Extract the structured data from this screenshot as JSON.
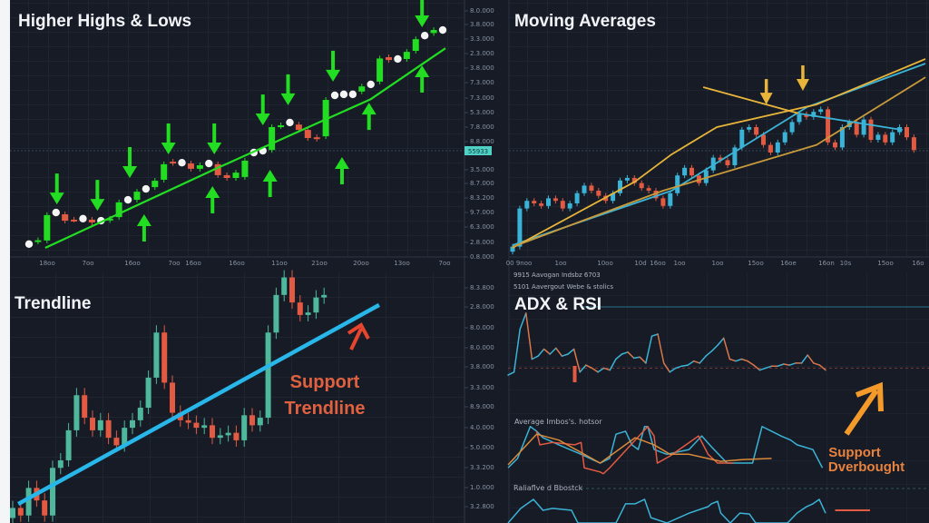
{
  "colors": {
    "background": "#161b26",
    "grid": "#262d3b",
    "hh_green": "#22dd22",
    "red": "#e35a42",
    "cyan": "#3bb3d6",
    "teal": "#4fb79c",
    "trendline": "#29b6e8",
    "gold": "#e8b53a",
    "dark_gold": "#c99a3a",
    "orange": "#f39a2b",
    "annotation_red": "#e0613f",
    "purple": "#7b4fd0"
  },
  "axes": {
    "top_y_labels": [
      "8.0.000",
      "3.8.000",
      "3.3.000",
      "2.3.000",
      "3.8.000",
      "7.3.000",
      "7.3.000",
      "5.3.000",
      "7.8.000",
      "8.8.000",
      "3.5.000",
      "8.7.000",
      "8.3.200",
      "9.7.000",
      "6.3.000",
      "2.8.000",
      "0.8.000"
    ],
    "top_price_badge": "55933",
    "bottom_y_labels": [
      "8.3.800",
      "2.8.000",
      "8.0.000",
      "8.0.000",
      "3.8.000",
      "3.3.000",
      "8.9.000",
      "4.0.000",
      "5.0.000",
      "3.3.200",
      "1.0.000",
      "3.2.800"
    ],
    "top_left_x_labels": [
      "18oo",
      "7oo",
      "16oo",
      "7oo",
      "16oo",
      "16oo",
      "11oo",
      "21oo",
      "20oo",
      "13oo",
      "7oo"
    ],
    "top_right_x_labels": [
      "00 9noo",
      "1oo",
      "10oo",
      "10d",
      "16oo",
      "1oo",
      "1oo",
      "15oo",
      "16oe",
      "16on",
      "10s",
      "15oo",
      "16o"
    ]
  },
  "chart_data": [
    {
      "type": "candlestick",
      "title": "Higher Highs & Lows",
      "ylim": [
        0,
        100
      ],
      "candles": [
        [
          4,
          4,
          "dot"
        ],
        [
          5,
          5.5,
          "g"
        ],
        [
          5.4,
          15.4,
          "g"
        ],
        [
          16.4,
          16.4,
          "dot"
        ],
        [
          15.7,
          13.2,
          "r"
        ],
        [
          13.6,
          13.6,
          "r"
        ],
        [
          14,
          14,
          "dot"
        ],
        [
          13.6,
          12.5,
          "r"
        ],
        [
          13.2,
          13.2,
          "dot"
        ],
        [
          13.4,
          14,
          "g"
        ],
        [
          14.6,
          20.4,
          "g"
        ],
        [
          21.4,
          21.4,
          "dot"
        ],
        [
          21.4,
          24.6,
          "g"
        ],
        [
          25.7,
          25.7,
          "dot"
        ],
        [
          26.4,
          28.9,
          "g"
        ],
        [
          29.3,
          35.4,
          "g"
        ],
        [
          36.4,
          35.9,
          "r"
        ],
        [
          36,
          36,
          "dot"
        ],
        [
          35.7,
          33.6,
          "r"
        ],
        [
          33.6,
          35,
          "g"
        ],
        [
          35.7,
          35.7,
          "dot"
        ],
        [
          35.4,
          31.1,
          "r"
        ],
        [
          31.1,
          30,
          "r"
        ],
        [
          30,
          32.1,
          "g"
        ],
        [
          30.4,
          36.8,
          "g"
        ],
        [
          40,
          40,
          "dot"
        ],
        [
          40.7,
          40.7,
          "dot"
        ],
        [
          41,
          50,
          "g"
        ],
        [
          50.4,
          50.7,
          "g"
        ],
        [
          51.8,
          51.8,
          "dot"
        ],
        [
          51,
          48.9,
          "r"
        ],
        [
          48.9,
          45.7,
          "r"
        ],
        [
          46,
          45.4,
          "r"
        ],
        [
          46.4,
          60.7,
          "g"
        ],
        [
          62.5,
          62.5,
          "dot"
        ],
        [
          62.9,
          62.9,
          "dot"
        ],
        [
          62.9,
          62.9,
          "dot"
        ],
        [
          64,
          66,
          "g"
        ],
        [
          66.8,
          66.8,
          "dot"
        ],
        [
          67.9,
          77,
          "g"
        ],
        [
          77.5,
          76.4,
          "r"
        ],
        [
          76.8,
          76.8,
          "dot"
        ],
        [
          76.8,
          79.6,
          "g"
        ],
        [
          80,
          84.6,
          "g"
        ],
        [
          86,
          86,
          "dot"
        ],
        [
          87,
          88.2,
          "g"
        ],
        [
          88.2,
          88.2,
          "dot"
        ]
      ],
      "trendline": [
        [
          1.8,
          2.5
        ],
        [
          21,
          34
        ],
        [
          38,
          61
        ],
        [
          46.3,
          81
        ]
      ],
      "arrows_down": [
        [
          3.1,
          19.6
        ],
        [
          7.6,
          17.1
        ],
        [
          11.2,
          30
        ],
        [
          15.5,
          39.3
        ],
        [
          20.6,
          39.3
        ],
        [
          26,
          50.7
        ],
        [
          28.8,
          58.6
        ],
        [
          33.8,
          67.9
        ],
        [
          43.7,
          89.3
        ]
      ],
      "arrows_up": [
        [
          12.8,
          15.7
        ],
        [
          20.4,
          26.8
        ],
        [
          26.8,
          33.2
        ],
        [
          34.8,
          38.2
        ],
        [
          37.8,
          59.6
        ],
        [
          43.7,
          74.3
        ]
      ]
    },
    {
      "type": "candlestick",
      "title": "Moving Averages",
      "ylim": [
        0,
        100
      ],
      "closes": [
        3,
        18,
        21,
        20,
        19,
        22,
        21,
        18,
        20,
        24,
        27,
        25,
        23,
        21,
        24,
        29,
        30,
        28,
        26,
        25,
        22,
        19,
        24,
        31,
        34,
        31,
        28,
        33,
        38,
        37,
        35,
        42,
        49,
        50,
        47,
        43,
        40,
        44,
        48,
        52,
        55,
        54,
        56,
        57,
        44,
        42,
        50,
        52,
        47,
        53,
        45,
        47,
        44,
        48,
        50,
        46,
        41
      ],
      "ma_lines": [
        {
          "color": "#3bb3d6",
          "points": [
            [
              0,
              3.6
            ],
            [
              22.2,
              25
            ],
            [
              41.1,
              57.9
            ],
            [
              57.6,
              75
            ]
          ]
        },
        {
          "color": "#e8b53a",
          "points": [
            [
              0,
              2.5
            ],
            [
              17.1,
              28.6
            ],
            [
              22.2,
              39.3
            ],
            [
              28.5,
              50
            ],
            [
              42.4,
              58.9
            ],
            [
              57.6,
              76.8
            ]
          ]
        },
        {
          "color": "#c99a3a",
          "points": [
            [
              0,
              2.9
            ],
            [
              21,
              25
            ],
            [
              42.4,
              43
            ],
            [
              57.6,
              69.6
            ]
          ]
        },
        {
          "color": "#e8b53a",
          "points": [
            [
              26.6,
              65.7
            ],
            [
              39.9,
              55.4
            ]
          ]
        },
        {
          "color": "#3bb3d6",
          "points": [
            [
              39.9,
              55.4
            ],
            [
              54.4,
              48.9
            ]
          ]
        }
      ],
      "arrows_down": [
        [
          35.4,
          58.9
        ],
        [
          40.5,
          64.3
        ]
      ]
    },
    {
      "type": "candlestick",
      "title": "Trendline",
      "ylim": [
        0,
        100
      ],
      "candles": [
        [
          2,
          6
        ],
        [
          6,
          3
        ],
        [
          3,
          14
        ],
        [
          14,
          9
        ],
        [
          9,
          3
        ],
        [
          3,
          22
        ],
        [
          22,
          25
        ],
        [
          25,
          37
        ],
        [
          37,
          51
        ],
        [
          51,
          42
        ],
        [
          42,
          37
        ],
        [
          37,
          41
        ],
        [
          41,
          34
        ],
        [
          34,
          31
        ],
        [
          31,
          38
        ],
        [
          38,
          41
        ],
        [
          41,
          46
        ],
        [
          46,
          58
        ],
        [
          58,
          76
        ],
        [
          76,
          56
        ],
        [
          56,
          44
        ],
        [
          44,
          41
        ],
        [
          41,
          40
        ],
        [
          40,
          38
        ],
        [
          38,
          39
        ],
        [
          39,
          34
        ],
        [
          34,
          35
        ],
        [
          35,
          36
        ],
        [
          36,
          33
        ],
        [
          33,
          43
        ],
        [
          43,
          39
        ],
        [
          39,
          42
        ],
        [
          42,
          76
        ],
        [
          76,
          91
        ],
        [
          91,
          98
        ],
        [
          98,
          88
        ],
        [
          88,
          83
        ],
        [
          83,
          84
        ],
        [
          84,
          90
        ],
        [
          90,
          91
        ]
      ],
      "trendline": [
        [
          0.7,
          7.6
        ],
        [
          45.9,
          87
        ]
      ],
      "annotation": {
        "line1": "Support",
        "line2": "Trendline"
      }
    },
    {
      "type": "line",
      "title": "ADX & RSI",
      "legend": [
        "9915  Aavogan Indsbz  6703",
        "5101  Aavergout Webe & stolics"
      ],
      "xlim": [
        0,
        130
      ],
      "adx": {
        "values": [
          29,
          32,
          75,
          91,
          45,
          48,
          55,
          50,
          56,
          48,
          50,
          55,
          32,
          39,
          36,
          32,
          36,
          34,
          45,
          50,
          52,
          46,
          47,
          41,
          68,
          70,
          41,
          32,
          36,
          38,
          39,
          43,
          41,
          48,
          53,
          59,
          66,
          45,
          43,
          45,
          43,
          39,
          34,
          36,
          38,
          38,
          40,
          39,
          41,
          41,
          49,
          41,
          39,
          34
        ],
        "reference_level": 36
      },
      "middle": {
        "label": "Average Imbos's. hotsor",
        "series": [
          {
            "color": "#3bb3d6",
            "points": [
              [
                0,
                15
              ],
              [
                3,
                31
              ],
              [
                7,
                85
              ],
              [
                9,
                77
              ],
              [
                11,
                66
              ],
              [
                16,
                54
              ],
              [
                23,
                38
              ],
              [
                29,
                23
              ],
              [
                32,
                31
              ],
              [
                34,
                72
              ],
              [
                37,
                77
              ],
              [
                39,
                54
              ],
              [
                41,
                46
              ],
              [
                43,
                85
              ],
              [
                44,
                85
              ],
              [
                46,
                46
              ],
              [
                50,
                38
              ],
              [
                57,
                46
              ],
              [
                61,
                69
              ],
              [
                64,
                51
              ],
              [
                69,
                23
              ],
              [
                77,
                23
              ],
              [
                80,
                85
              ],
              [
                83,
                77
              ],
              [
                86,
                69
              ],
              [
                89,
                62
              ],
              [
                91,
                54
              ],
              [
                96,
                46
              ],
              [
                99,
                15
              ]
            ]
          },
          {
            "color": "#e35a42",
            "points": [
              [
                9,
                77
              ],
              [
                10,
                54
              ],
              [
                14,
                58
              ],
              [
                21,
                54
              ],
              [
                23,
                58
              ],
              [
                24,
                15
              ],
              [
                29,
                8
              ],
              [
                30,
                5
              ],
              [
                32,
                15
              ],
              [
                44,
                85
              ],
              [
                46,
                69
              ],
              [
                47,
                23
              ],
              [
                51,
                35
              ],
              [
                60,
                69
              ],
              [
                63,
                38
              ],
              [
                66,
                23
              ],
              [
                71,
                23
              ]
            ]
          },
          {
            "color": "#d98a3a",
            "points": [
              [
                0,
                20
              ],
              [
                9,
                72
              ],
              [
                16,
                62
              ],
              [
                29,
                23
              ],
              [
                40,
                66
              ],
              [
                46,
                54
              ],
              [
                51,
                38
              ],
              [
                57,
                38
              ],
              [
                67,
                26
              ],
              [
                74,
                29
              ],
              [
                83,
                31
              ]
            ]
          }
        ]
      },
      "bottom": {
        "label": "Raliaflve d Bbostck",
        "series": [
          {
            "color": "#3bb3d6",
            "points": [
              [
                0,
                0
              ],
              [
                4,
                52
              ],
              [
                8,
                84
              ],
              [
                11,
                45
              ],
              [
                14,
                52
              ],
              [
                20,
                45
              ],
              [
                22,
                0
              ],
              [
                34,
                0
              ],
              [
                37,
                68
              ],
              [
                40,
                68
              ],
              [
                43,
                84
              ],
              [
                45,
                19
              ],
              [
                50,
                0
              ],
              [
                57,
                35
              ],
              [
                63,
                58
              ],
              [
                64,
                68
              ],
              [
                66,
                77
              ],
              [
                67,
                35
              ],
              [
                70,
                0
              ],
              [
                73,
                35
              ],
              [
                76,
                32
              ],
              [
                78,
                0
              ],
              [
                88,
                0
              ],
              [
                91,
                35
              ],
              [
                94,
                58
              ],
              [
                96,
                68
              ],
              [
                98,
                84
              ],
              [
                100,
                35
              ]
            ]
          }
        ],
        "red_level": {
          "from": 103,
          "to": 114,
          "value": 45
        }
      },
      "annotation": {
        "line1": "Support",
        "line2": "Dverbought"
      }
    }
  ]
}
